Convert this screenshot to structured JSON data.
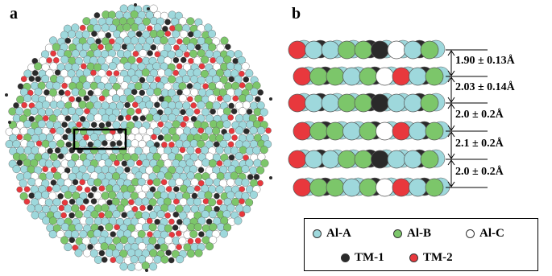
{
  "panels": {
    "a": "a",
    "b": "b"
  },
  "spacings": [
    "1.90 ± 0.13Å",
    "2.03 ± 0.14Å",
    "2.0 ± 0.2Å",
    "2.1 ± 0.2Å",
    "2.0 ± 0.2Å"
  ],
  "legend": [
    {
      "label": "Al-A",
      "color": "#9ed8dc"
    },
    {
      "label": "Al-B",
      "color": "#7cc66a"
    },
    {
      "label": "Al-C",
      "color": "#ffffff"
    },
    {
      "label": "TM-1",
      "color": "#2a2a2a"
    },
    {
      "label": "TM-2",
      "color": "#e8383d"
    }
  ],
  "colors": {
    "al_a": "#9ed8dc",
    "al_b": "#7cc66a",
    "al_c": "#ffffff",
    "tm1": "#2a2a2a",
    "tm2": "#e8383d"
  }
}
